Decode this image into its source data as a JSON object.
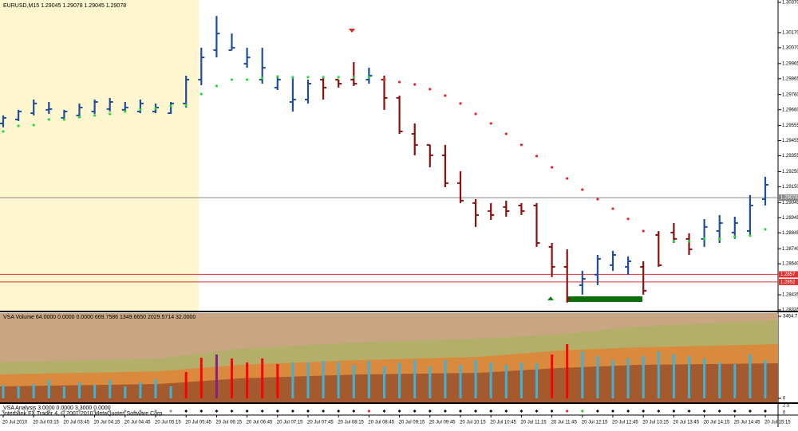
{
  "chart_data": {
    "type": "ohlc",
    "title": "EURUSD,M15  1.29045 1.29078 1.29045 1.29078",
    "up_color": "#1f4e9c",
    "down_color": "#8b1010",
    "sar_up_color": "#22dd33",
    "sar_down_color": "#ee2222",
    "categories": [
      "20 Jul 2010",
      null,
      "20 Jul 03:15",
      null,
      "20 Jul 03:45",
      null,
      "20 Jul 04:15",
      null,
      "20 Jul 04:45",
      null,
      "20 Jul 05:15",
      null,
      "20 Jul 05:45",
      null,
      "20 Jul 06:15",
      null,
      "20 Jul 06:45",
      null,
      "20 Jul 07:15",
      null,
      "20 Jul 07:45",
      null,
      "20 Jul 08:15",
      null,
      "20 Jul 08:45",
      null,
      "20 Jul 09:15",
      null,
      "20 Jul 09:45",
      null,
      "20 Jul 10:15",
      null,
      "20 Jul 10:45",
      null,
      "20 Jul 11:15",
      null,
      "20 Jul 11:45",
      null,
      "20 Jul 12:15",
      null,
      "20 Jul 12:45",
      null,
      "20 Jul 13:15",
      null,
      "20 Jul 13:45",
      null,
      "20 Jul 14:15",
      null,
      "20 Jul 14:45",
      null,
      "20 Jul 15:15"
    ],
    "open": [
      1.29569,
      1.29595,
      1.29637,
      1.29659,
      1.29606,
      1.29622,
      1.29648,
      1.29664,
      1.29659,
      1.29648,
      1.29648,
      1.29637,
      1.29701,
      1.29859,
      1.30054,
      1.30054,
      1.29964,
      1.29859,
      1.29806,
      1.29711,
      1.29727,
      1.29859,
      1.29859,
      1.29859,
      1.29859,
      1.29859,
      1.29738,
      1.295,
      1.29427,
      1.29358,
      1.29174,
      1.29042,
      1.28989,
      1.29016,
      1.29026,
      1.29026,
      1.28752,
      1.2862,
      1.28499,
      1.28568,
      1.28631,
      1.2862,
      1.2862,
      1.28831,
      1.28847,
      1.28805,
      1.28805,
      1.28857,
      1.28847,
      1.28857,
      1.29068
    ],
    "high": [
      1.29622,
      1.29659,
      1.29727,
      1.29711,
      1.29659,
      1.29701,
      1.29727,
      1.29738,
      1.29711,
      1.29727,
      1.29701,
      1.29711,
      1.29885,
      1.3007,
      1.3028,
      1.30164,
      1.3007,
      1.3007,
      1.29885,
      1.29869,
      1.29859,
      1.29869,
      1.29859,
      1.29975,
      1.29938,
      1.29885,
      1.29753,
      1.29569,
      1.29427,
      1.29427,
      1.29253,
      1.29068,
      1.29042,
      1.29058,
      1.29042,
      1.29042,
      1.28778,
      1.28736,
      1.28594,
      1.28699,
      1.28726,
      1.28689,
      1.28657,
      1.28857,
      1.2891,
      1.28842,
      1.28936,
      1.28963,
      1.28952,
      1.29095,
      1.29216
    ],
    "low": [
      1.29543,
      1.29585,
      1.29622,
      1.29632,
      1.29595,
      1.29606,
      1.29632,
      1.29648,
      1.29648,
      1.29637,
      1.29637,
      1.29632,
      1.29674,
      1.29822,
      1.30006,
      1.30054,
      1.29938,
      1.29832,
      1.2979,
      1.29648,
      1.29701,
      1.29727,
      1.29806,
      1.29817,
      1.29832,
      1.29659,
      1.295,
      1.29358,
      1.29279,
      1.29147,
      1.29042,
      1.28884,
      1.28931,
      1.28952,
      1.28963,
      1.28752,
      1.28552,
      1.28383,
      1.28436,
      1.28499,
      1.28594,
      1.28568,
      1.28436,
      1.2862,
      1.28778,
      1.28699,
      1.28752,
      1.28778,
      1.28805,
      1.28831,
      1.29026
    ],
    "close": [
      1.29606,
      1.29648,
      1.29701,
      1.29664,
      1.29648,
      1.29674,
      1.29711,
      1.29711,
      1.29674,
      1.29701,
      1.29674,
      1.29701,
      1.29859,
      1.30006,
      1.30164,
      1.3007,
      1.30006,
      1.29938,
      1.29859,
      1.29727,
      1.29832,
      1.29806,
      1.29832,
      1.29832,
      1.29885,
      1.29738,
      1.29516,
      1.29427,
      1.29358,
      1.29174,
      1.29058,
      1.28963,
      1.28963,
      1.28989,
      1.28989,
      1.28778,
      1.2862,
      1.28409,
      1.28541,
      1.28673,
      1.28699,
      1.28657,
      1.28462,
      1.28631,
      1.28805,
      1.28736,
      1.28884,
      1.2891,
      1.2891,
      1.29026,
      1.29163
    ],
    "sar_up": [
      1.29516,
      1.29553,
      1.29558,
      1.29595,
      1.29595,
      1.29611,
      1.29622,
      1.29632,
      1.29648,
      1.29659,
      1.29669,
      1.29685,
      1.2969,
      1.29764,
      1.29817,
      1.29859,
      1.29859,
      1.29869,
      1.2988,
      1.29875,
      1.29875,
      1.29875,
      1.29875,
      1.29875,
      1.29875,
      null,
      null,
      null,
      null,
      null,
      null,
      null,
      null,
      null,
      null,
      null,
      null,
      null,
      null,
      null,
      null,
      null,
      null,
      null,
      1.28789,
      1.28789,
      1.28805,
      1.28805,
      1.2882,
      1.28826,
      1.28868
    ],
    "sar_down": [
      null,
      null,
      null,
      null,
      null,
      null,
      null,
      null,
      null,
      null,
      null,
      null,
      null,
      null,
      null,
      null,
      null,
      null,
      null,
      null,
      null,
      null,
      null,
      null,
      null,
      1.29859,
      1.29843,
      1.29827,
      1.29796,
      1.29753,
      1.29701,
      1.29632,
      1.29569,
      1.295,
      1.29427,
      1.29353,
      1.29279,
      1.29205,
      1.29131,
      1.29068,
      1.29005,
      1.28937,
      1.28857,
      null,
      null,
      null,
      null,
      null,
      null,
      null,
      null
    ],
    "ylim": [
      1.28335,
      1.3037
    ],
    "yticks": [
      {
        "value": 1.3037,
        "label": "1.30370"
      },
      {
        "value": 1.3017,
        "label": "1.30170"
      },
      {
        "value": 1.3007,
        "label": "1.30070"
      },
      1.29965,
      1.29865,
      {
        "value": 1.2976,
        "label": "1.29760"
      },
      {
        "value": 1.2966,
        "label": "1.29660"
      },
      1.29555,
      1.29455,
      1.29355,
      {
        "value": 1.2925,
        "label": "1.29250"
      },
      {
        "value": 1.2915,
        "label": "1.29150"
      },
      1.29045,
      1.28945,
      1.28845,
      {
        "value": 1.2874,
        "label": "1.28740"
      },
      {
        "value": 1.2864,
        "label": "1.28640"
      },
      1.28435,
      1.28335
    ],
    "levels": [
      {
        "value": 1.29078,
        "label": "1.29078",
        "color": "#888888"
      },
      {
        "value": 1.2857,
        "label": "1.2857",
        "color": "#dd3333"
      },
      {
        "value": 1.2852,
        "label": "1.2852",
        "color": "#dd3333"
      }
    ],
    "volume_panel": {
      "title": "VSA Volume 64.0000 0.0000 0.0000 669.7586 1349.6650 2029.5714 32.0000",
      "ylim": [
        0,
        3464.7
      ],
      "yticks": [
        3464.7,
        0
      ],
      "values": [
        572,
        505,
        606,
        774,
        505,
        673,
        572,
        774,
        505,
        673,
        807,
        505,
        1110,
        1716,
        1850,
        1682,
        1514,
        1682,
        1447,
        1514,
        1514,
        1581,
        1514,
        1413,
        1581,
        1346,
        1514,
        1615,
        1346,
        1615,
        1413,
        1615,
        1514,
        1413,
        1514,
        1480,
        1850,
        2288,
        1985,
        1783,
        1615,
        1682,
        1783,
        1985,
        1850,
        1783,
        1682,
        1514,
        1447,
        1850,
        1615
      ],
      "colors": [
        "#3ab4dc",
        "#3ab4dc",
        "#3ab4dc",
        "#3ab4dc",
        "#3ab4dc",
        "#3ab4dc",
        "#3ab4dc",
        "#3ab4dc",
        "#3ab4dc",
        "#3ab4dc",
        "#3ab4dc",
        "#3ab4dc",
        "#ff0000",
        "#ff0000",
        "#8b1a8b",
        "#ff0000",
        "#ff0000",
        "#ff0000",
        "#ff0000",
        "#3ab4dc",
        "#3ab4dc",
        "#3ab4dc",
        "#3ab4dc",
        "#3ab4dc",
        "#3ab4dc",
        "#3ab4dc",
        "#3ab4dc",
        "#3ab4dc",
        "#3ab4dc",
        "#3ab4dc",
        "#3ab4dc",
        "#3ab4dc",
        "#3ab4dc",
        "#3ab4dc",
        "#3ab4dc",
        "#3ab4dc",
        "#ff0000",
        "#ff0000",
        "#3ab4dc",
        "#3ab4dc",
        "#3ab4dc",
        "#3ab4dc",
        "#3ab4dc",
        "#3ab4dc",
        "#3ab4dc",
        "#3ab4dc",
        "#3ab4dc",
        "#3ab4dc",
        "#3ab4dc",
        "#3ab4dc",
        "#3ab4dc"
      ]
    },
    "signal_panel": {
      "title": "VSA Analysis 3.0000 0.0000 3.3000 0.0000",
      "note": "Interbank FX Trader 4, © 2001-2010 MetaQuotes Software Corp.",
      "yticks": [
        2.5,
        0
      ],
      "colors": [
        "#999999",
        "#999999",
        "#999999",
        "#999999",
        "#999999",
        "#999999",
        "#999999",
        "#999999",
        "#999999",
        "#999999",
        "#999999",
        "#999999",
        "#111111",
        "#111111",
        "#111111",
        "#111111",
        "#111111",
        "#111111",
        "#111111",
        "#111111",
        "#111111",
        "#111111",
        "#111111",
        "#111111",
        "#ee2222",
        "#111111",
        "#111111",
        "#111111",
        "#111111",
        "#111111",
        "#111111",
        "#111111",
        "#111111",
        "#111111",
        "#111111",
        "#111111",
        "#111111",
        "#ee2222",
        "#22cc22",
        "#111111",
        "#111111",
        "#111111",
        "#111111",
        "#111111",
        "#111111",
        "#111111",
        "#111111",
        "#111111",
        "#111111",
        "#111111",
        "#111111"
      ]
    }
  }
}
